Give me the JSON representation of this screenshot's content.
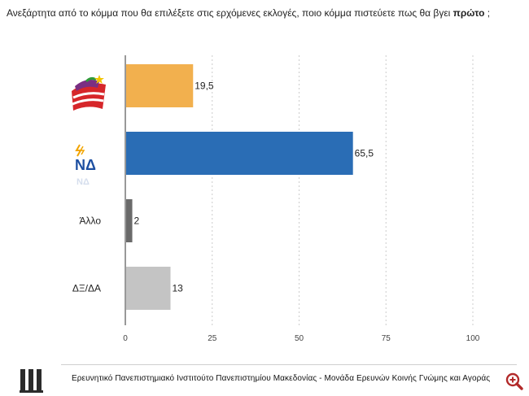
{
  "question": {
    "prefix": "Ανεξάρτητα από το κόμμα που θα επιλέξετε στις ερχόμενες εκλογές, ποιο κόμμα πιστεύετε πως θα βγει ",
    "bold": "πρώτο",
    "suffix": " ;"
  },
  "footer": {
    "text": "Ερευνητικό Πανεπιστημιακό Ινστιτούτο Πανεπιστημίου Μακεδονίας - Μονάδα Ερευνών Κοινής Γνώμης και Αγοράς"
  },
  "colors": {
    "syriza": "#f2b04e",
    "nd": "#2a6db5",
    "other": "#6a6a6a",
    "blank": "#c4c4c4",
    "axis": "#555555",
    "grid": "#cccccc"
  },
  "chart_data": {
    "type": "bar",
    "orientation": "horizontal",
    "categories": [
      "ΣΥΡΙΖΑ",
      "ΝΔ",
      "Άλλο",
      "ΔΞ/ΔΑ"
    ],
    "category_labels_shown": [
      "",
      "",
      "Άλλο",
      "ΔΞ/ΔΑ"
    ],
    "category_logos": [
      "syriza-logo",
      "nd-logo",
      "",
      ""
    ],
    "values": [
      19.5,
      65.5,
      2,
      13
    ],
    "value_labels": [
      "19,5",
      "65,5",
      "2",
      "13"
    ],
    "bar_colors": [
      "#f2b04e",
      "#2a6db5",
      "#6a6a6a",
      "#c4c4c4"
    ],
    "xlim": [
      0,
      100
    ],
    "xticks": [
      0,
      25,
      50,
      75,
      100
    ],
    "grid": true,
    "title": "Ανεξάρτητα από το κόμμα που θα επιλέξετε στις ερχόμενες εκλογές, ποιο κόμμα πιστεύετε πως θα βγει πρώτο ;"
  }
}
